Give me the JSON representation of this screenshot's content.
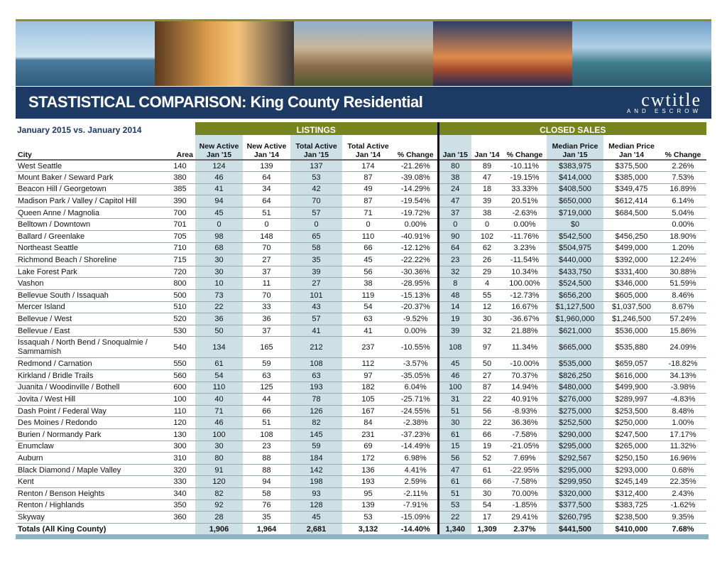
{
  "title": "STASTISTICAL COMPARISON: King County Residential",
  "logo": {
    "main": "cwtitle",
    "sub": "AND ESCROW"
  },
  "subtitle": "January 2015 vs. January 2014",
  "groups": {
    "listings": "LISTINGS",
    "closed": "CLOSED SALES"
  },
  "headers": [
    "City",
    "Area",
    "New Active Jan '15",
    "New Active Jan '14",
    "Total Active Jan '15",
    "Total Active Jan '14",
    "% Change",
    "Jan '15",
    "Jan '14",
    "% Change",
    "Median Price Jan '15",
    "Median Price Jan '14",
    "% Change"
  ],
  "rows": [
    [
      "West Seattle",
      "140",
      "124",
      "139",
      "137",
      "174",
      "-21.26%",
      "80",
      "89",
      "-10.11%",
      "$383,975",
      "$375,500",
      "2.26%"
    ],
    [
      "Mount Baker / Seward Park",
      "380",
      "46",
      "64",
      "53",
      "87",
      "-39.08%",
      "38",
      "47",
      "-19.15%",
      "$414,000",
      "$385,000",
      "7.53%"
    ],
    [
      "Beacon Hill / Georgetown",
      "385",
      "41",
      "34",
      "42",
      "49",
      "-14.29%",
      "24",
      "18",
      "33.33%",
      "$408,500",
      "$349,475",
      "16.89%"
    ],
    [
      "Madison Park / Valley / Capitol Hill",
      "390",
      "94",
      "64",
      "70",
      "87",
      "-19.54%",
      "47",
      "39",
      "20.51%",
      "$650,000",
      "$612,414",
      "6.14%"
    ],
    [
      "Queen Anne / Magnolia",
      "700",
      "45",
      "51",
      "57",
      "71",
      "-19.72%",
      "37",
      "38",
      "-2.63%",
      "$719,000",
      "$684,500",
      "5.04%"
    ],
    [
      "Belltown / Downtown",
      "701",
      "0",
      "0",
      "0",
      "0",
      "0.00%",
      "0",
      "0",
      "0.00%",
      "$0",
      "",
      "0.00%"
    ],
    [
      "Ballard / Greenlake",
      "705",
      "98",
      "148",
      "65",
      "110",
      "-40.91%",
      "90",
      "102",
      "-11.76%",
      "$542,500",
      "$456,250",
      "18.90%"
    ],
    [
      "Northeast Seattle",
      "710",
      "68",
      "70",
      "58",
      "66",
      "-12.12%",
      "64",
      "62",
      "3.23%",
      "$504,975",
      "$499,000",
      "1.20%"
    ],
    [
      "Richmond Beach / Shoreline",
      "715",
      "30",
      "27",
      "35",
      "45",
      "-22.22%",
      "23",
      "26",
      "-11.54%",
      "$440,000",
      "$392,000",
      "12.24%"
    ],
    [
      "Lake Forest Park",
      "720",
      "30",
      "37",
      "39",
      "56",
      "-30.36%",
      "32",
      "29",
      "10.34%",
      "$433,750",
      "$331,400",
      "30.88%"
    ],
    [
      "Vashon",
      "800",
      "10",
      "11",
      "27",
      "38",
      "-28.95%",
      "8",
      "4",
      "100.00%",
      "$524,500",
      "$346,000",
      "51.59%"
    ],
    [
      "Bellevue South / Issaquah",
      "500",
      "73",
      "70",
      "101",
      "119",
      "-15.13%",
      "48",
      "55",
      "-12.73%",
      "$656,200",
      "$605,000",
      "8.46%"
    ],
    [
      "Mercer Island",
      "510",
      "22",
      "33",
      "43",
      "54",
      "-20.37%",
      "14",
      "12",
      "16.67%",
      "$1,127,500",
      "$1,037,500",
      "8.67%"
    ],
    [
      "Bellevue / West",
      "520",
      "36",
      "36",
      "57",
      "63",
      "-9.52%",
      "19",
      "30",
      "-36.67%",
      "$1,960,000",
      "$1,246,500",
      "57.24%"
    ],
    [
      "Bellevue / East",
      "530",
      "50",
      "37",
      "41",
      "41",
      "0.00%",
      "39",
      "32",
      "21.88%",
      "$621,000",
      "$536,000",
      "15.86%"
    ],
    [
      "Issaquah / North Bend / Snoqualmie / Sammamish",
      "540",
      "134",
      "165",
      "212",
      "237",
      "-10.55%",
      "108",
      "97",
      "11.34%",
      "$665,000",
      "$535,880",
      "24.09%"
    ],
    [
      "Redmond / Carnation",
      "550",
      "61",
      "59",
      "108",
      "112",
      "-3.57%",
      "45",
      "50",
      "-10.00%",
      "$535,000",
      "$659,057",
      "-18.82%"
    ],
    [
      "Kirkland / Bridle Trails",
      "560",
      "54",
      "63",
      "63",
      "97",
      "-35.05%",
      "46",
      "27",
      "70.37%",
      "$826,250",
      "$616,000",
      "34.13%"
    ],
    [
      "Juanita / Woodinville / Bothell",
      "600",
      "110",
      "125",
      "193",
      "182",
      "6.04%",
      "100",
      "87",
      "14.94%",
      "$480,000",
      "$499,900",
      "-3.98%"
    ],
    [
      "Jovita / West Hill",
      "100",
      "40",
      "44",
      "78",
      "105",
      "-25.71%",
      "31",
      "22",
      "40.91%",
      "$276,000",
      "$289,997",
      "-4.83%"
    ],
    [
      "Dash Point / Federal Way",
      "110",
      "71",
      "66",
      "126",
      "167",
      "-24.55%",
      "51",
      "56",
      "-8.93%",
      "$275,000",
      "$253,500",
      "8.48%"
    ],
    [
      "Des Moines / Redondo",
      "120",
      "46",
      "51",
      "82",
      "84",
      "-2.38%",
      "30",
      "22",
      "36.36%",
      "$252,500",
      "$250,000",
      "1.00%"
    ],
    [
      "Burien / Normandy Park",
      "130",
      "100",
      "108",
      "145",
      "231",
      "-37.23%",
      "61",
      "66",
      "-7.58%",
      "$290,000",
      "$247,500",
      "17.17%"
    ],
    [
      "Enumclaw",
      "300",
      "30",
      "23",
      "59",
      "69",
      "-14.49%",
      "15",
      "19",
      "-21.05%",
      "$295,000",
      "$265,000",
      "11.32%"
    ],
    [
      "Auburn",
      "310",
      "80",
      "88",
      "184",
      "172",
      "6.98%",
      "56",
      "52",
      "7.69%",
      "$292,567",
      "$250,150",
      "16.96%"
    ],
    [
      "Black Diamond / Maple Valley",
      "320",
      "91",
      "88",
      "142",
      "136",
      "4.41%",
      "47",
      "61",
      "-22.95%",
      "$295,000",
      "$293,000",
      "0.68%"
    ],
    [
      "Kent",
      "330",
      "120",
      "94",
      "198",
      "193",
      "2.59%",
      "61",
      "66",
      "-7.58%",
      "$299,950",
      "$245,149",
      "22.35%"
    ],
    [
      "Renton / Benson Heights",
      "340",
      "82",
      "58",
      "93",
      "95",
      "-2.11%",
      "51",
      "30",
      "70.00%",
      "$320,000",
      "$312,400",
      "2.43%"
    ],
    [
      "Renton / Highlands",
      "350",
      "92",
      "76",
      "128",
      "139",
      "-7.91%",
      "53",
      "54",
      "-1.85%",
      "$377,500",
      "$383,725",
      "-1.62%"
    ],
    [
      "Skyway",
      "360",
      "28",
      "35",
      "45",
      "53",
      "-15.09%",
      "22",
      "17",
      "29.41%",
      "$260,795",
      "$238,500",
      "9.35%"
    ]
  ],
  "totals": [
    "Totals (All King County)",
    "",
    "1,906",
    "1,964",
    "2,681",
    "3,132",
    "-14.40%",
    "1,340",
    "1,309",
    "2.37%",
    "$441,500",
    "$410,000",
    "7.68%"
  ],
  "colors": {
    "navy": "#1c3a63",
    "olive": "#76841d",
    "shade": "#cde0e5"
  }
}
